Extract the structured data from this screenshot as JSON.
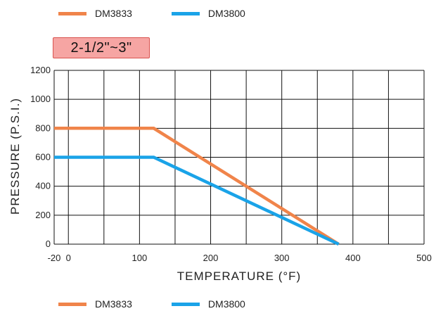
{
  "legend": [
    {
      "name": "DM3833",
      "color": "#f0844a"
    },
    {
      "name": "DM3800",
      "color": "#1aa3e8"
    }
  ],
  "badge": {
    "label": "2-1/2\"~3\""
  },
  "chart_data": {
    "type": "line",
    "xlabel": "TEMPERATURE (°F)",
    "ylabel": "PRESSURE (P.S.I.)",
    "xlim": [
      -20,
      500
    ],
    "ylim": [
      0,
      1200
    ],
    "x_ticks": [
      -20,
      0,
      100,
      200,
      300,
      400,
      500
    ],
    "y_ticks": [
      0,
      200,
      400,
      600,
      800,
      1000,
      1200
    ],
    "x_grid": [
      -20,
      0,
      50,
      100,
      150,
      200,
      250,
      300,
      350,
      400,
      450,
      500
    ],
    "y_grid": [
      0,
      200,
      400,
      600,
      800,
      1000,
      1200
    ],
    "grid": true,
    "legend_placement": "top and bottom",
    "series": [
      {
        "name": "DM3833",
        "color": "#f0844a",
        "points": [
          [
            -20,
            800
          ],
          [
            120,
            800
          ],
          [
            380,
            0
          ]
        ]
      },
      {
        "name": "DM3800",
        "color": "#1aa3e8",
        "points": [
          [
            -20,
            600
          ],
          [
            120,
            600
          ],
          [
            380,
            0
          ]
        ]
      }
    ]
  }
}
